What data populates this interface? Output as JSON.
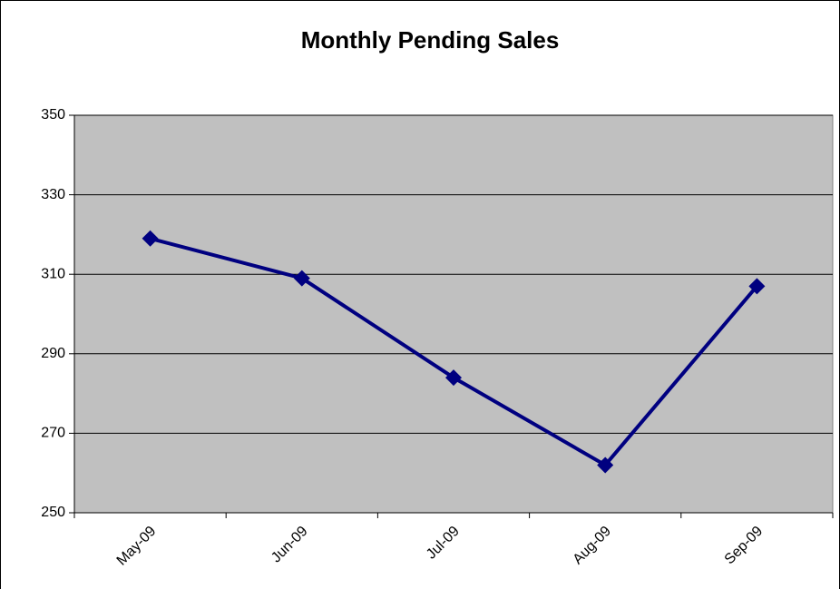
{
  "chart_data": {
    "type": "line",
    "title": "Monthly Pending Sales",
    "categories": [
      "May-09",
      "Jun-09",
      "Jul-09",
      "Aug-09",
      "Sep-09"
    ],
    "values": [
      319,
      309,
      284,
      262,
      307
    ],
    "color": "#000080",
    "ylim": [
      250,
      350
    ],
    "yticks": [
      250,
      270,
      290,
      310,
      330,
      350
    ],
    "grid": true
  }
}
